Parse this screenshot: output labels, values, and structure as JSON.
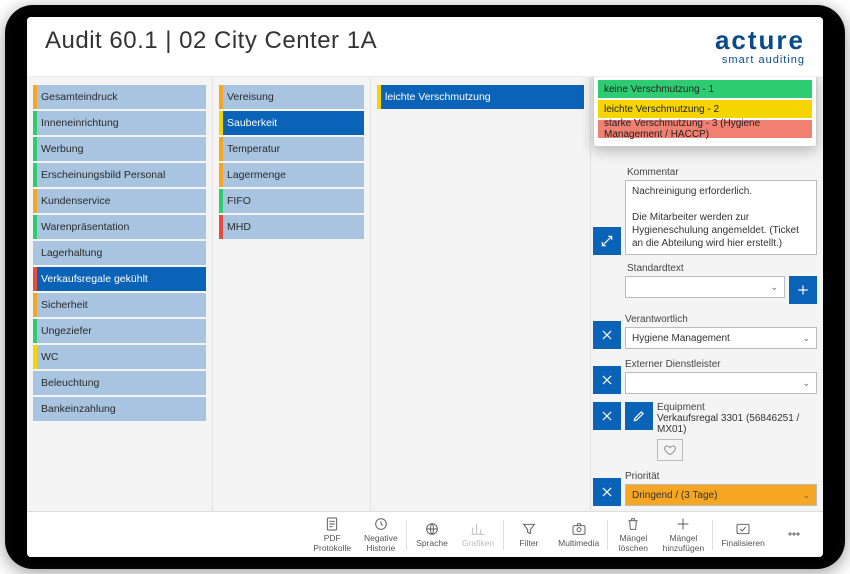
{
  "header": {
    "title": "Audit 60.1 | 02 City Center 1A",
    "brand_top": "acture",
    "brand_sub": "smart auditing"
  },
  "colA_selected_index": 7,
  "colA": [
    {
      "label": "Gesamteindruck",
      "accent": "#f5a623"
    },
    {
      "label": "Inneneinrichtung",
      "accent": "#2ecc71"
    },
    {
      "label": "Werbung",
      "accent": "#2ecc71"
    },
    {
      "label": "Erscheinungsbild Personal",
      "accent": "#2ecc71"
    },
    {
      "label": "Kundenservice",
      "accent": "#f5a623"
    },
    {
      "label": "Warenpräsentation",
      "accent": "#2ecc71"
    },
    {
      "label": "Lagerhaltung",
      "accent": "transparent"
    },
    {
      "label": "Verkaufsregale gekühlt",
      "accent": "#e74c3c"
    },
    {
      "label": "Sicherheit",
      "accent": "#f5a623"
    },
    {
      "label": "Ungeziefer",
      "accent": "#2ecc71"
    },
    {
      "label": "WC",
      "accent": "#f5d400"
    },
    {
      "label": "Beleuchtung",
      "accent": "transparent"
    },
    {
      "label": "Bankeinzahlung",
      "accent": "transparent"
    }
  ],
  "colB_selected_index": 1,
  "colB": [
    {
      "label": "Vereisung",
      "accent": "#f5a623"
    },
    {
      "label": "Sauberkeit",
      "accent": "#f5d400"
    },
    {
      "label": "Temperatur",
      "accent": "#f5a623"
    },
    {
      "label": "Lagermenge",
      "accent": "#f5a623"
    },
    {
      "label": "FIFO",
      "accent": "#2ecc71"
    },
    {
      "label": "MHD",
      "accent": "#e74c3c"
    }
  ],
  "colC_selected_index": 0,
  "colC": [
    {
      "label": "leichte Verschmutzung",
      "accent": "#f5d400"
    }
  ],
  "ratings": [
    {
      "label": "keine Verschmutzung - 1",
      "color": "#2ecc71"
    },
    {
      "label": "leichte Verschmutzung - 2",
      "color": "#f5d400"
    },
    {
      "label": "starke Verschmutzung - 3  (Hygiene Management / HACCP)",
      "color": "#f08072"
    }
  ],
  "detail": {
    "comment_label": "Kommentar",
    "comment_value": "Nachreinigung erforderlich.\n\nDie Mitarbeiter werden zur Hygieneschulung angemeldet. (Ticket an die Abteilung wird hier erstellt.)",
    "standardtext_label": "Standardtext",
    "standardtext_value": "",
    "responsible_label": "Verantwortlich",
    "responsible_value": "Hygiene Management",
    "external_label": "Externer Dienstleister",
    "external_value": "",
    "equipment_label": "Equipment",
    "equipment_value": "Verkaufsregal 3301 (56846251 / MX01)",
    "priority_label": "Priorität",
    "priority_value": "Dringend / (3 Tage)",
    "priority_bg": "#f5a623"
  },
  "toolbar": [
    {
      "name": "pdf",
      "label1": "PDF",
      "label2": "Protokolle",
      "icon": "pdf"
    },
    {
      "name": "history",
      "label1": "Negative",
      "label2": "Historie",
      "icon": "clock"
    },
    {
      "sep": true
    },
    {
      "name": "language",
      "label1": "Sprache",
      "label2": "",
      "icon": "globe"
    },
    {
      "name": "graphics",
      "label1": "Grafiken",
      "label2": "",
      "icon": "chart",
      "disabled": true
    },
    {
      "sep": true
    },
    {
      "name": "filter",
      "label1": "Filter",
      "label2": "",
      "icon": "filter"
    },
    {
      "name": "multimedia",
      "label1": "Multimedia",
      "label2": "",
      "icon": "camera"
    },
    {
      "sep": true
    },
    {
      "name": "delete",
      "label1": "Mängel",
      "label2": "löschen",
      "icon": "trash"
    },
    {
      "name": "add",
      "label1": "Mängel",
      "label2": "hinzufügen",
      "icon": "plus"
    },
    {
      "sep": true
    },
    {
      "name": "finalize",
      "label1": "Finalisieren",
      "label2": "",
      "icon": "check"
    },
    {
      "name": "more",
      "label1": "",
      "label2": "",
      "icon": "dots"
    }
  ]
}
